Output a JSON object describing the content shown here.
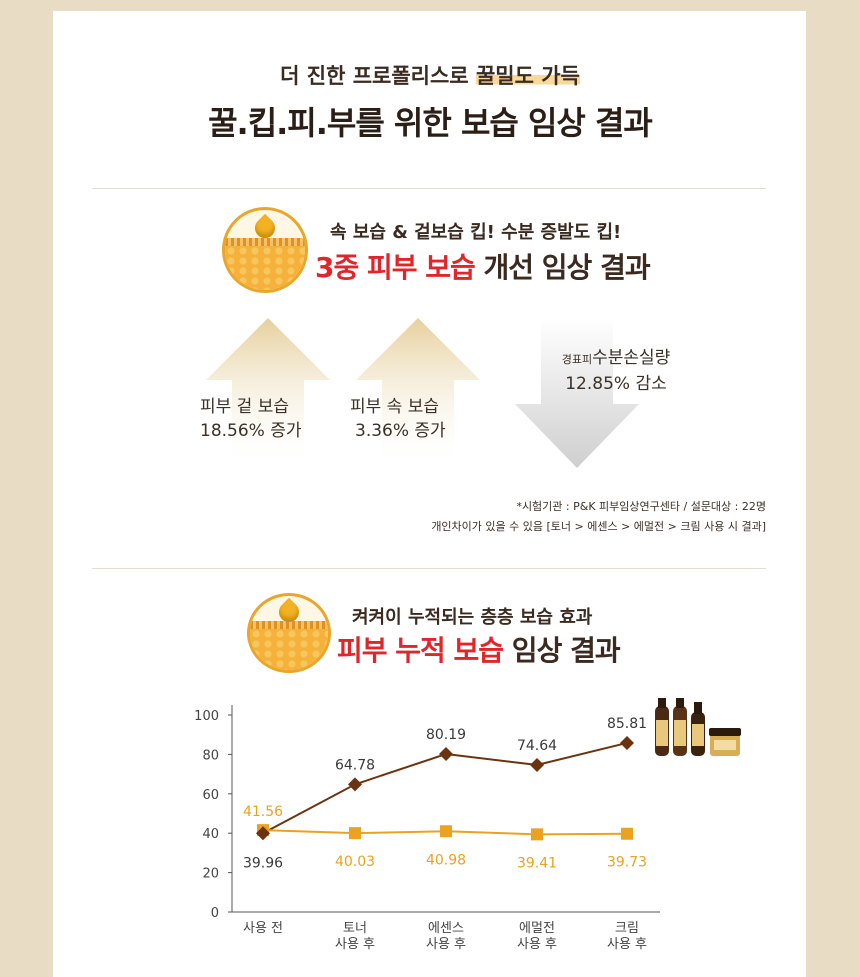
{
  "header": {
    "line1_pre": "더 진한 프로폴리스로 ",
    "line1_highlight": "꿀밀도 가득",
    "line2": "꿀.킵.피.부를 위한 보습 임상 결과"
  },
  "section1": {
    "subtitle": "속 보습 & 겉보습 킵! 수분 증발도 킵!",
    "title_red": "3중 피부 보습",
    "title_rest": " 개선 임상 결과",
    "arrows": [
      {
        "line1": "피부 겉 보습",
        "line2": "18.56% 증가",
        "direction": "up"
      },
      {
        "line1": "피부 속 보습",
        "line2": "3.36% 증가",
        "direction": "up"
      },
      {
        "line1_small": "경표피",
        "line1": "수분손실량",
        "line2": "12.85% 감소",
        "direction": "down"
      }
    ],
    "note_line1": "*시험기관 : P&K 피부임상연구센타 / 설문대상 : 22명",
    "note_line2": "개인차이가 있을 수 있음 [토너 > 에센스 > 에멀전 > 크림 사용 시 결과]"
  },
  "section2": {
    "subtitle": "켜켜이 누적되는 층층 보습 효과",
    "title_red": "피부 누적 보습",
    "title_rest": " 임상 결과"
  },
  "colors": {
    "series1": "#6b3410",
    "series2": "#eba220",
    "accent_red": "#e0262b",
    "arrow": "#e7d2a5",
    "background": "#e9dcc4"
  },
  "chart_data": {
    "type": "line",
    "categories": [
      "사용 전",
      "토너\n사용 후",
      "에센스\n사용 후",
      "에멀전\n사용 후",
      "크림\n사용 후"
    ],
    "series": [
      {
        "marker": "diamond",
        "values": [
          39.96,
          64.78,
          80.19,
          74.64,
          85.81
        ]
      },
      {
        "marker": "square",
        "values": [
          41.56,
          40.03,
          40.98,
          39.41,
          39.73
        ]
      }
    ],
    "yticks": [
      0,
      20,
      40,
      60,
      80,
      100
    ],
    "ylim": [
      0,
      100
    ],
    "grid": false,
    "title": "",
    "xlabel": "",
    "ylabel": ""
  }
}
